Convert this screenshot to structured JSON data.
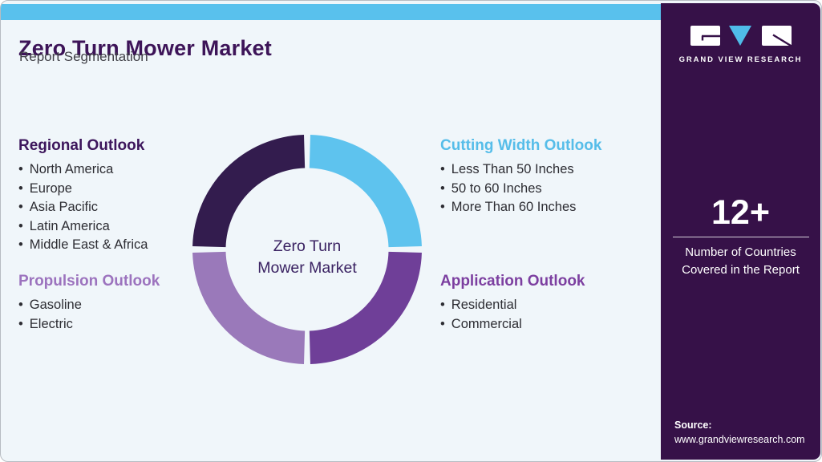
{
  "header": {
    "title": "Zero Turn Mower Market",
    "subtitle": "Report Segmentation"
  },
  "theme": {
    "top_bar": "#59C1ED",
    "page_bg": "#F0F6FA",
    "sidebar_bg": "#361148",
    "title_color": "#3D1458",
    "subtitle_color": "#3F3F46",
    "body_text": "#2D2D33"
  },
  "sections": [
    {
      "title": "Regional Outlook",
      "color": "#3D165C",
      "items": [
        "North America",
        "Europe",
        "Asia Pacific",
        "Latin America",
        "Middle East & Africa"
      ]
    },
    {
      "title": "Propulsion Outlook",
      "color": "#9C73BE",
      "items": [
        "Gasoline",
        "Electric"
      ]
    },
    {
      "title": "Cutting Width Outlook",
      "color": "#56BDE9",
      "items": [
        "Less Than 50 Inches",
        "50 to 60 Inches",
        "More Than 60 Inches"
      ]
    },
    {
      "title": "Application Outlook",
      "color": "#7C3FA0",
      "items": [
        "Residential",
        "Commercial"
      ]
    }
  ],
  "chart_data": {
    "type": "pie",
    "subtype": "donut",
    "title": "Zero Turn Mower Market",
    "center_label_lines": [
      "Zero Turn",
      "Mower Market"
    ],
    "center_label_color": "#3A2262",
    "segments": [
      {
        "name": "Cutting Width Outlook",
        "value": 25,
        "color": "#5EC3EE"
      },
      {
        "name": "Application Outlook",
        "value": 25,
        "color": "#6F3F98"
      },
      {
        "name": "Propulsion Outlook",
        "value": 25,
        "color": "#9A79BA"
      },
      {
        "name": "Regional Outlook",
        "value": 25,
        "color": "#331C4E"
      }
    ],
    "start_angle_deg": 0,
    "gap_deg": 3.2,
    "inner_radius_ratio": 0.71,
    "legend": "none"
  },
  "sidebar": {
    "brand": "GRAND VIEW RESEARCH",
    "logo_v_color": "#4FBCE9",
    "stat_value": "12+",
    "stat_label_line1": "Number of Countries",
    "stat_label_line2": "Covered in the Report",
    "source_label": "Source:",
    "source_url": "www.grandviewresearch.com"
  }
}
